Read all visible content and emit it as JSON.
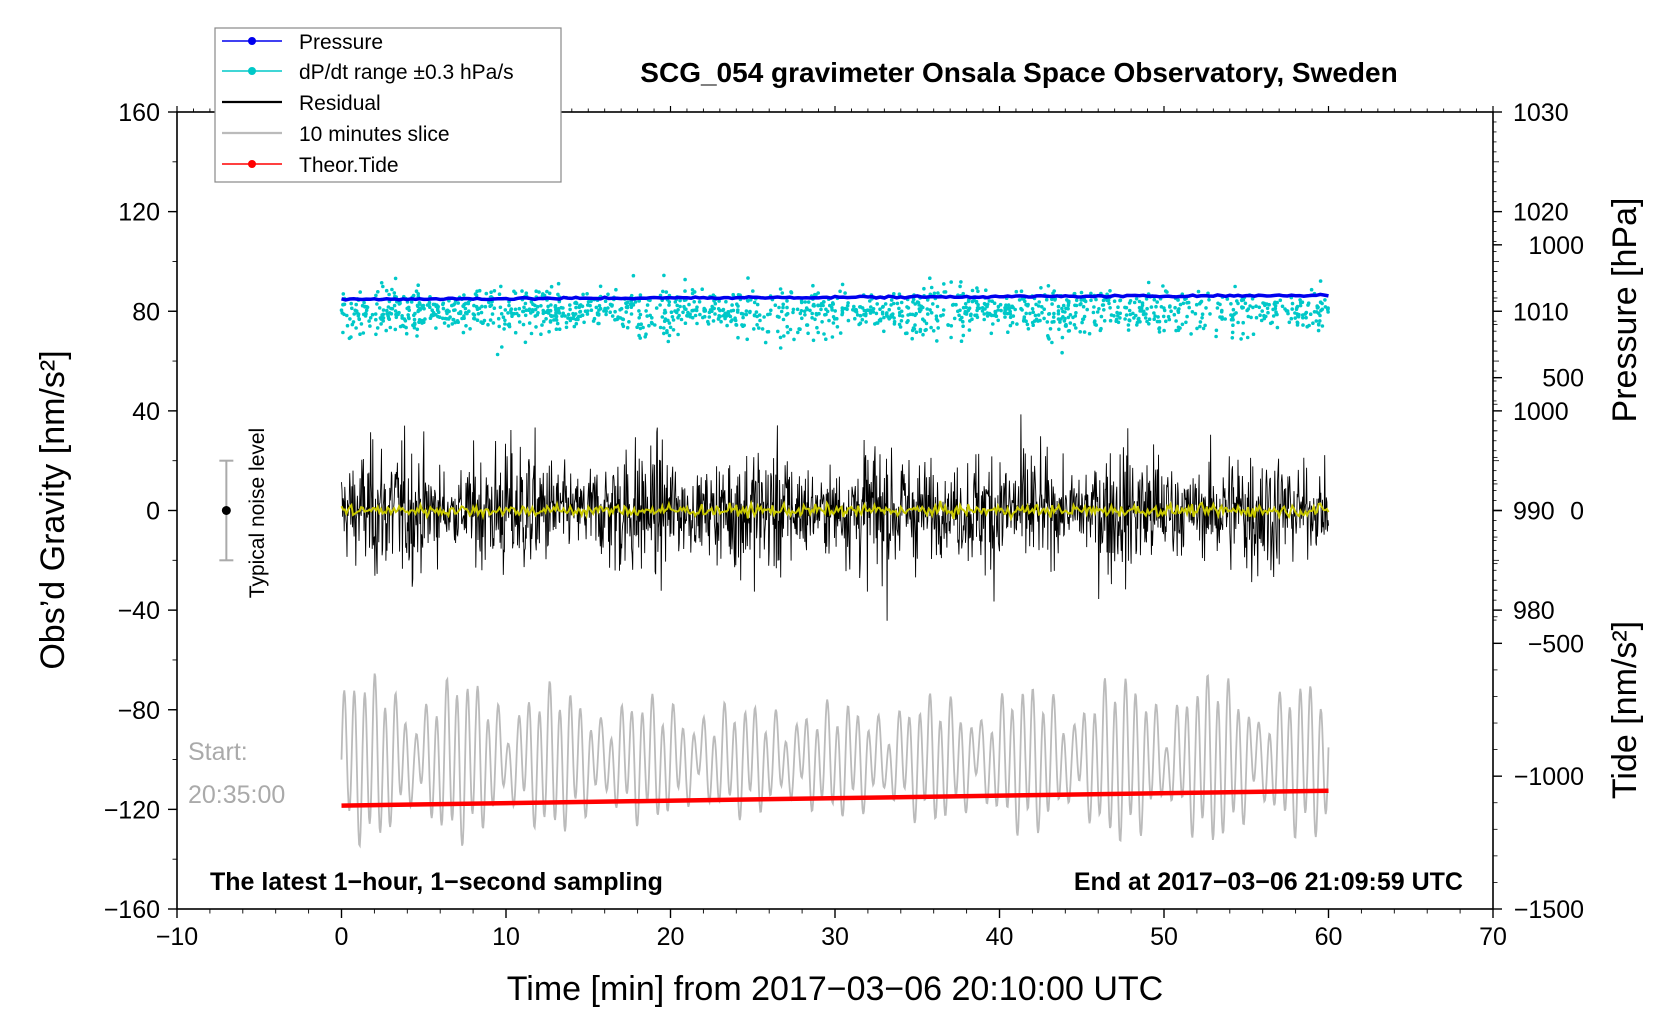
{
  "chart_data": {
    "type": "line",
    "title": "SCG_054 gravimeter Onsala Space Observatory, Sweden",
    "xlabel": "Time [min] from 2017−03−06 20:10:00 UTC",
    "ylabel_left": "Obs’d Gravity [nm/s²]",
    "ylabel_right_pressure": "Pressure [hPa]",
    "ylabel_right_tide": "Tide [nm/s²]",
    "xlim": [
      -10,
      70
    ],
    "ylim": [
      -160,
      160
    ],
    "x_ticks": [
      -10,
      0,
      10,
      20,
      30,
      40,
      50,
      60,
      70
    ],
    "x_tick_labels": [
      "−10",
      "0",
      "10",
      "20",
      "30",
      "40",
      "50",
      "60",
      "70"
    ],
    "y_ticks": [
      -160,
      -120,
      -80,
      -40,
      0,
      40,
      80,
      120,
      160
    ],
    "y_tick_labels": [
      "−160",
      "−120",
      "−80",
      "−40",
      "0",
      "40",
      "80",
      "120",
      "160"
    ],
    "pressure_axis": {
      "ticks": [
        980,
        990,
        1000,
        1010,
        1020,
        1030
      ],
      "tick_labels": [
        "980",
        "990",
        "1000",
        "1010",
        "1020",
        "1030"
      ],
      "range": [
        950,
        1030
      ]
    },
    "tide_axis": {
      "ticks": [
        -1500,
        -1000,
        -500,
        0,
        500,
        1000
      ],
      "tick_labels": [
        "−1500",
        "−1000",
        "−500",
        "0",
        "500",
        "1000"
      ],
      "range": [
        -1500,
        1500
      ]
    },
    "legend": [
      {
        "name": "Pressure",
        "color": "#0000ee",
        "marker": true
      },
      {
        "name": "dP/dt range ±0.3 hPa/s",
        "color": "#00c8c8",
        "marker": true
      },
      {
        "name": "Residual",
        "color": "#000000",
        "marker": false
      },
      {
        "name": "10 minutes slice",
        "color": "#bbbbbb",
        "marker": false
      },
      {
        "name": "Theor.Tide",
        "color": "#ff0000",
        "marker": true
      }
    ],
    "legend_position": "top-left",
    "series": [
      {
        "name": "Pressure",
        "color": "#0000ee",
        "axis": "pressure",
        "x": [
          0,
          60
        ],
        "values": [
          1011.2,
          1011.6
        ]
      },
      {
        "name": "dP/dt range ±0.3 hPa/s",
        "color": "#00c8c8",
        "axis": "left",
        "x_range": [
          0,
          60
        ],
        "center": 80,
        "spread": 20
      },
      {
        "name": "Residual",
        "color": "#000000",
        "axis": "left",
        "x_range": [
          0,
          60
        ],
        "center": 0,
        "amplitude": 50
      },
      {
        "name": "Residual (smoothed)",
        "color": "#c8c800",
        "axis": "left",
        "x_range": [
          0,
          60
        ],
        "center": 0
      },
      {
        "name": "10 minutes slice",
        "color": "#bbbbbb",
        "axis": "left",
        "x_range": [
          0,
          60
        ],
        "center": -100,
        "amplitude": 30
      },
      {
        "name": "Theor.Tide",
        "color": "#ff0000",
        "axis": "left",
        "x": [
          0,
          60
        ],
        "values": [
          -118.5,
          -112.5
        ]
      }
    ],
    "noise_marker": {
      "label": "Typical noise level",
      "x": -7,
      "center": 0,
      "half_range": 20
    },
    "start_label": [
      "Start:",
      "20:35:00"
    ],
    "footer_left": "The latest 1−hour, 1−second sampling",
    "footer_right": "End at 2017−03−06 21:09:59 UTC"
  }
}
